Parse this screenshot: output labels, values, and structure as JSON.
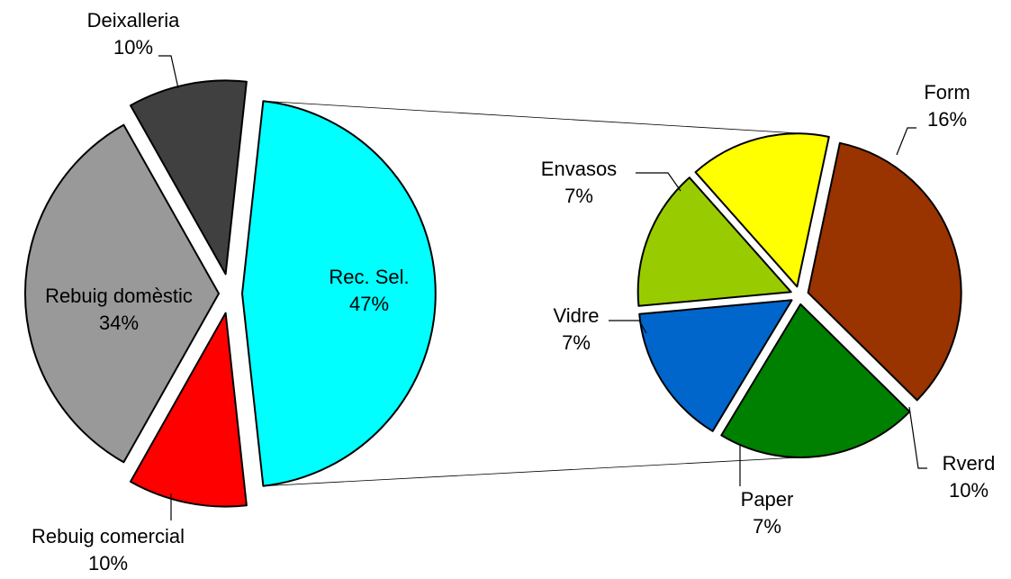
{
  "chart_data": {
    "type": "pie-of-pie",
    "title": "",
    "main": {
      "slices": [
        {
          "name": "Rec. Sel.",
          "value": 47,
          "label": "47%",
          "color": "#00FFFF"
        },
        {
          "name": "Rebuig comercial",
          "value": 10,
          "label": "10%",
          "color": "#404040"
        },
        {
          "name": "Rebuig domèstic",
          "value": 34,
          "label": "34%",
          "color": "#999999"
        },
        {
          "name": "Deixalleria",
          "value": 10,
          "label": "10%",
          "color": "#FF0000"
        }
      ]
    },
    "secondary": {
      "parent": "Rec. Sel.",
      "slices": [
        {
          "name": "Form",
          "value": 16,
          "label": "16%",
          "color": "#993300"
        },
        {
          "name": "Rverd",
          "value": 10,
          "label": "10%",
          "color": "#008000"
        },
        {
          "name": "Paper",
          "value": 7,
          "label": "7%",
          "color": "#0066CC"
        },
        {
          "name": "Vidre",
          "value": 7,
          "label": "7%",
          "color": "#99CC00"
        },
        {
          "name": "Envasos",
          "value": 7,
          "label": "7%",
          "color": "#FFFF00"
        }
      ]
    }
  }
}
